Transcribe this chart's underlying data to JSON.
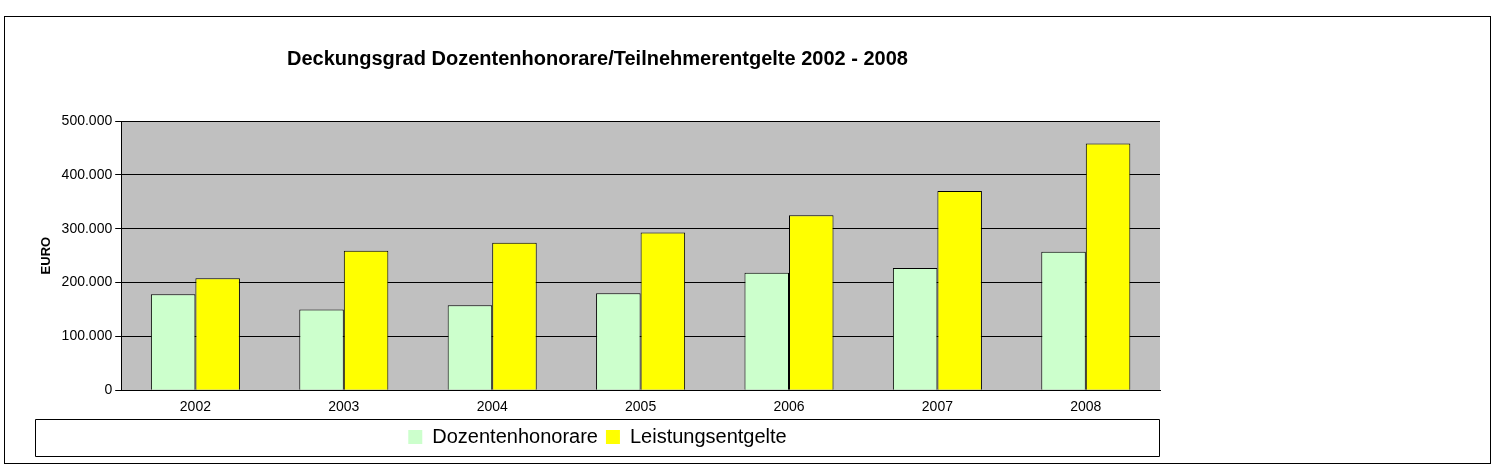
{
  "chart_data": {
    "type": "bar",
    "title": "Deckungsgrad Dozentenhonorare/Teilnehmerentgelte 2002 - 2008",
    "ylabel": "EURO",
    "categories": [
      "2002",
      "2003",
      "2004",
      "2005",
      "2006",
      "2007",
      "2008"
    ],
    "series": [
      {
        "name": "Dozentenhonorare",
        "color": "#ccffcc",
        "values": [
          178000,
          150000,
          158000,
          180000,
          218000,
          227000,
          257000
        ]
      },
      {
        "name": "Leistungsentgelte",
        "color": "#ffff00",
        "values": [
          208000,
          259000,
          274000,
          293000,
          325000,
          370000,
          458000
        ]
      }
    ],
    "ylim": [
      0,
      500000
    ],
    "yticks": [
      {
        "value": 0,
        "label": "0"
      },
      {
        "value": 100000,
        "label": "100.000"
      },
      {
        "value": 200000,
        "label": "200.000"
      },
      {
        "value": 300000,
        "label": "300.000"
      },
      {
        "value": 400000,
        "label": "400.000"
      },
      {
        "value": 500000,
        "label": "500.000"
      }
    ],
    "grid": "y",
    "legend": "bottom"
  }
}
